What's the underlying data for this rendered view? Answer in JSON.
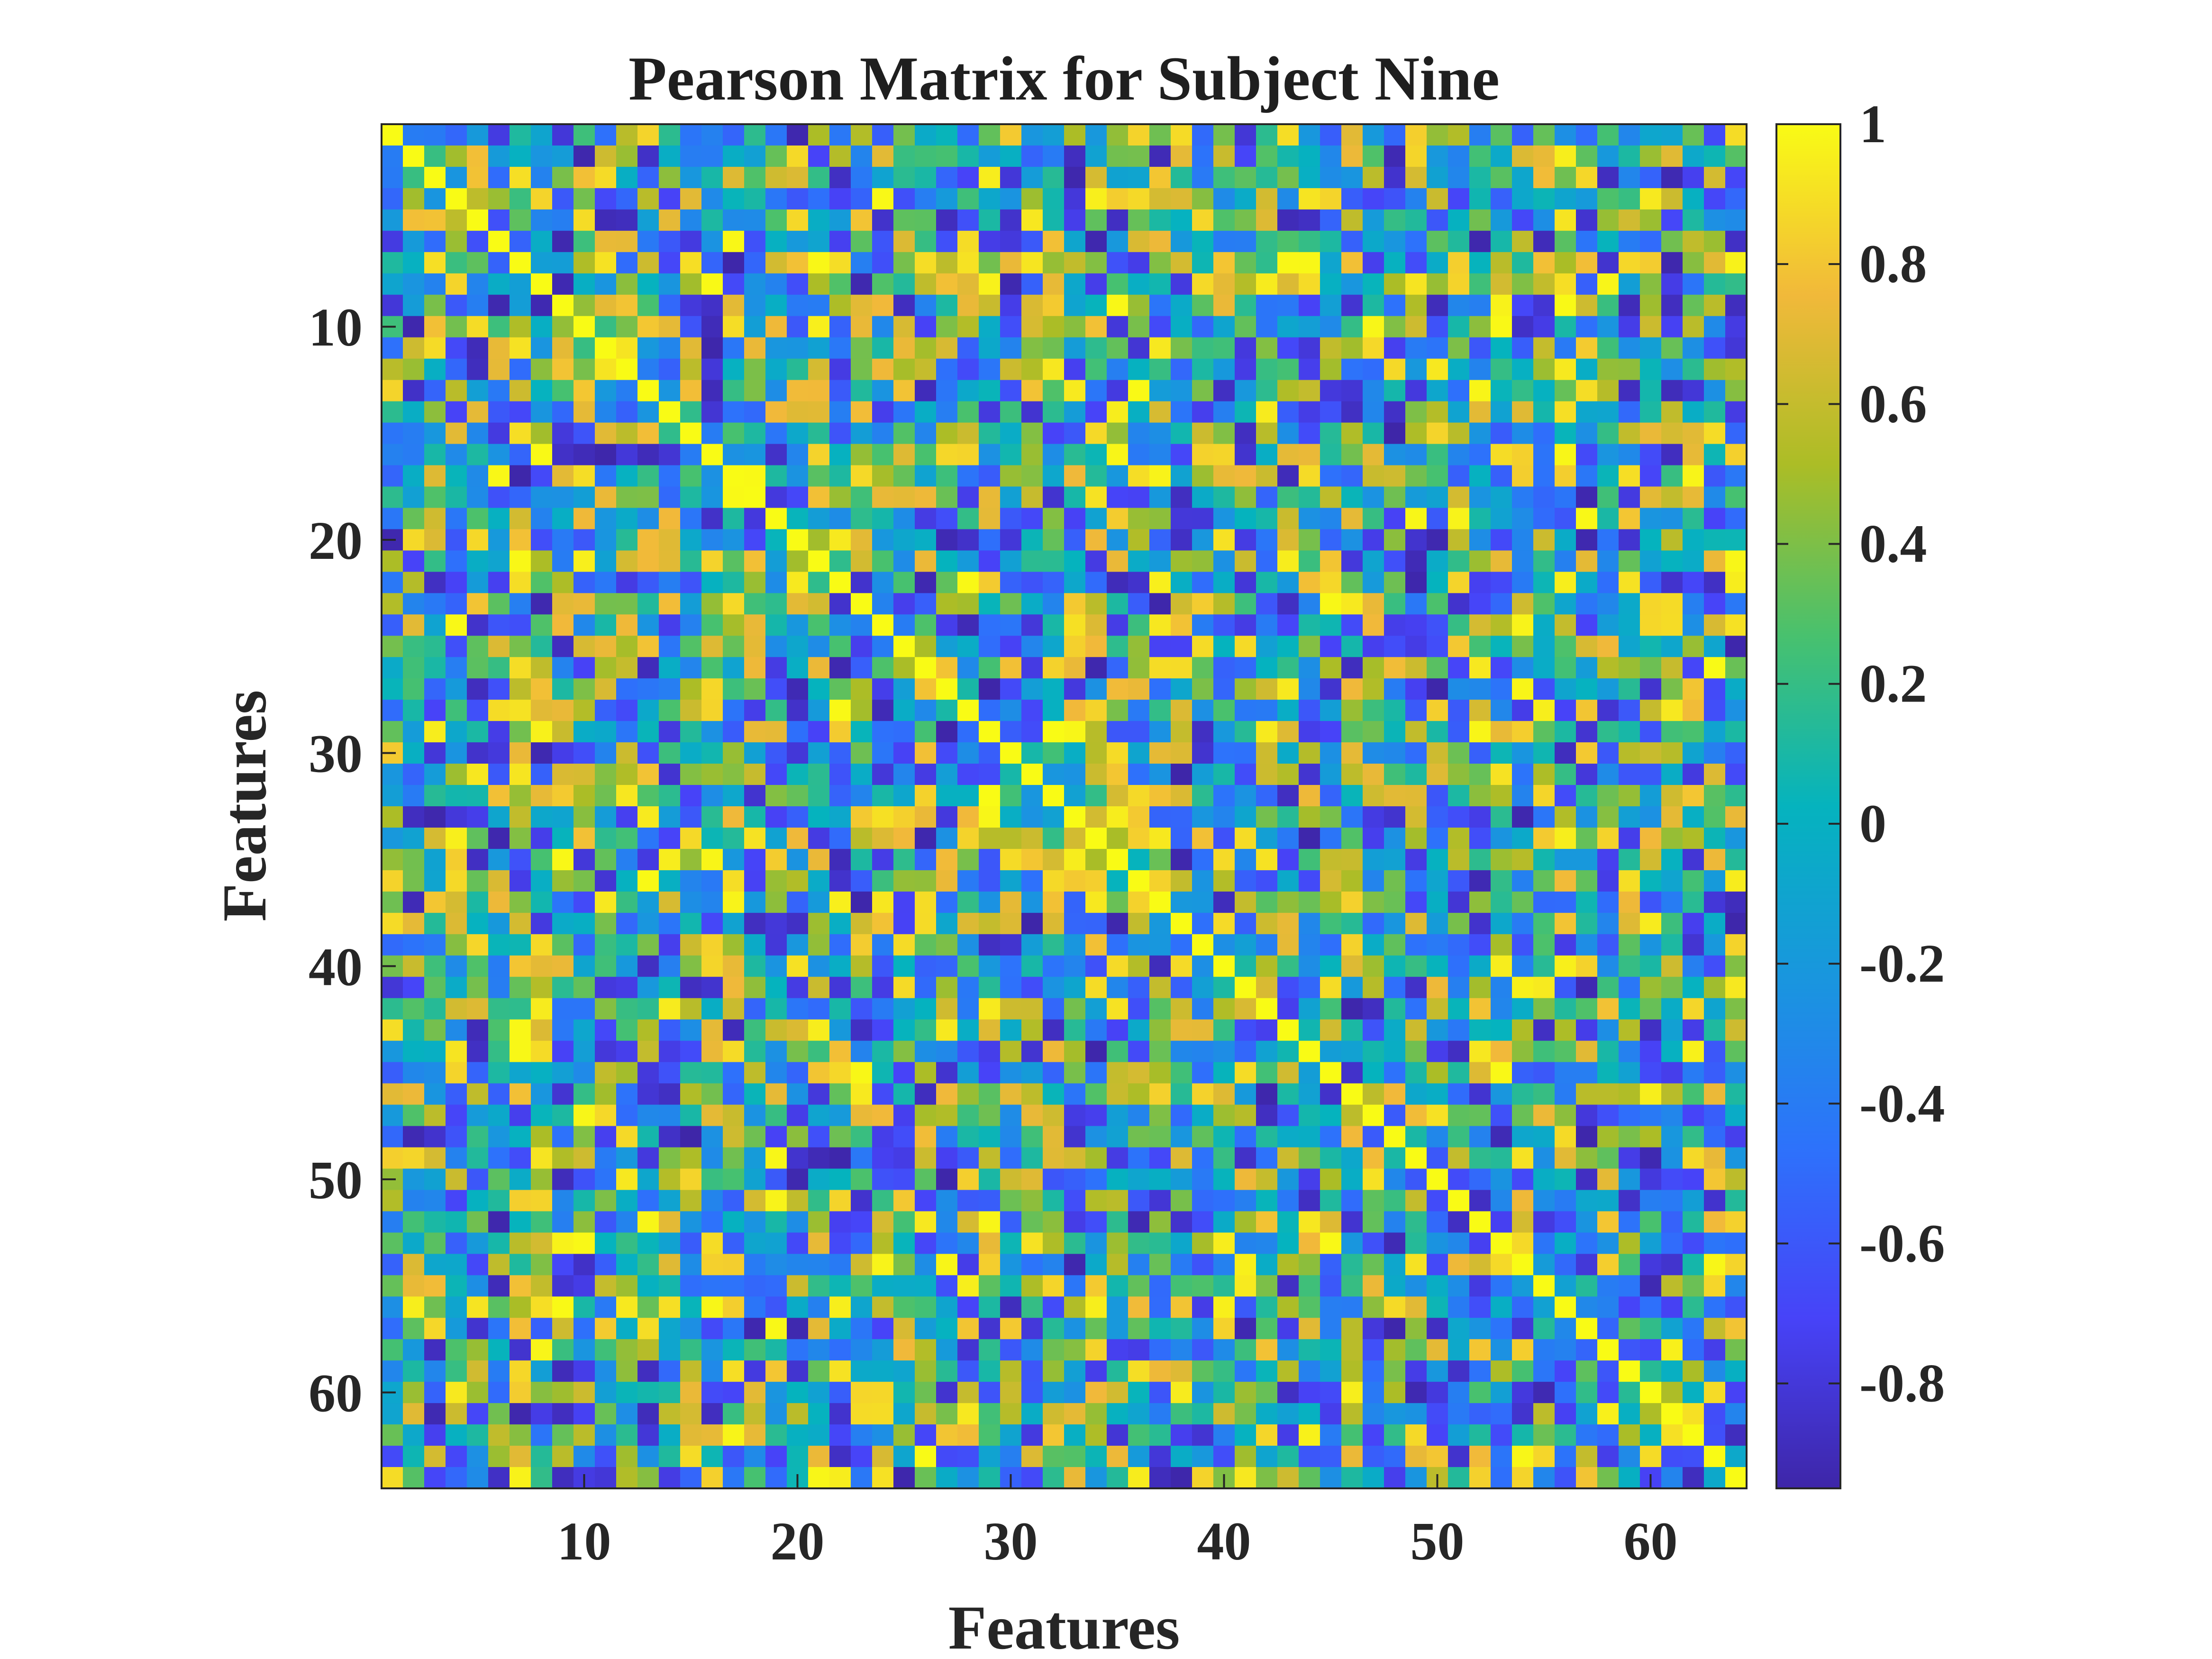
{
  "chart_data": {
    "type": "heatmap",
    "title": "Pearson Matrix for Subject Nine",
    "xlabel": "Features",
    "ylabel": "Features",
    "size": 64,
    "xlim": [
      0.5,
      64.5
    ],
    "ylim": [
      0.5,
      64.5
    ],
    "x_ticks": [
      "10",
      "20",
      "30",
      "40",
      "50",
      "60"
    ],
    "y_ticks": [
      "10",
      "20",
      "30",
      "40",
      "50",
      "60"
    ],
    "colorbar": {
      "range": [
        -0.95,
        1
      ],
      "ticks": [
        "1",
        "0.8",
        "0.6",
        "0.4",
        "0.2",
        "0",
        "-0.2",
        "-0.4",
        "-0.6",
        "-0.8"
      ],
      "colormap": "parula"
    },
    "diagonal": 1,
    "grid": false,
    "legend": "none"
  }
}
